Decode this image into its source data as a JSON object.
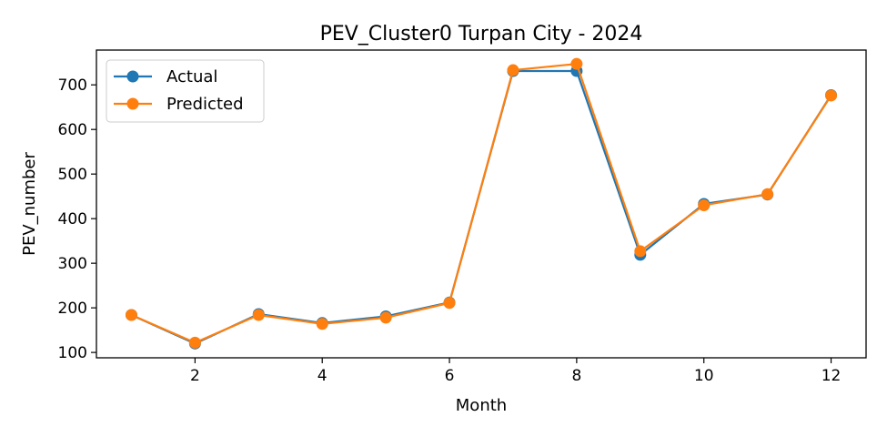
{
  "chart_data": {
    "type": "line",
    "title": "PEV_Cluster0 Turpan City - 2024",
    "xlabel": "Month",
    "ylabel": "PEV_number",
    "x": [
      1,
      2,
      3,
      4,
      5,
      6,
      7,
      8,
      9,
      10,
      11,
      12
    ],
    "xlim": [
      0.45,
      12.55
    ],
    "ylim": [
      88,
      778
    ],
    "xticks": [
      2,
      4,
      6,
      8,
      10,
      12
    ],
    "yticks": [
      100,
      200,
      300,
      400,
      500,
      600,
      700
    ],
    "grid": false,
    "legend_position": "top-left",
    "series": [
      {
        "name": "Actual",
        "color": "#1f77b4",
        "marker": "circle",
        "values": [
          184,
          120,
          186,
          166,
          181,
          212,
          731,
          731,
          319,
          433,
          454,
          677
        ]
      },
      {
        "name": "Predicted",
        "color": "#ff7f0e",
        "marker": "circle",
        "values": [
          184,
          122,
          184,
          164,
          178,
          211,
          733,
          747,
          327,
          430,
          455,
          676
        ]
      }
    ]
  }
}
